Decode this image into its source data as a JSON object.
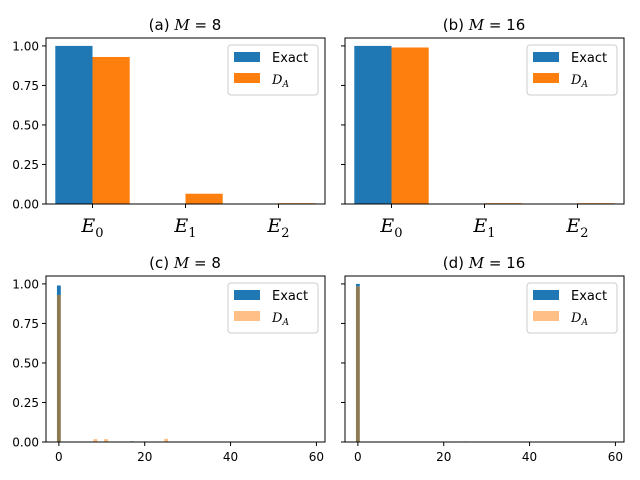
{
  "colors": {
    "exact": "#1f77b4",
    "da": "#ff7f0e",
    "da_light": "#ffbf86",
    "overlap": "#8c7a54"
  },
  "legend": {
    "exact": "Exact",
    "da_main": "D",
    "da_sub": "A"
  },
  "panels_top": [
    {
      "label_prefix": "(a) ",
      "var": "M",
      "eq": " = 8"
    },
    {
      "label_prefix": "(b) ",
      "var": "M",
      "eq": " = 16"
    }
  ],
  "panels_bottom": [
    {
      "label_prefix": "(c) ",
      "var": "M",
      "eq": " = 8"
    },
    {
      "label_prefix": "(d) ",
      "var": "M",
      "eq": " = 16"
    }
  ],
  "y_ticks": [
    "1.00",
    "0.75",
    "0.50",
    "0.25",
    "0.00"
  ],
  "x_ticks_bottom": [
    "0",
    "20",
    "40",
    "60"
  ],
  "x_tick_letter": "E",
  "x_tick_subs": [
    "0",
    "1",
    "2"
  ],
  "chart_data": [
    {
      "type": "bar",
      "title": "(a) M = 8",
      "categories": [
        "E0",
        "E1",
        "E2"
      ],
      "series": [
        {
          "name": "Exact",
          "values": [
            1.0,
            0.003,
            0.0
          ]
        },
        {
          "name": "D_A",
          "values": [
            0.93,
            0.065,
            0.005
          ]
        }
      ],
      "ylim": [
        0,
        1.05
      ],
      "legend": "top-right"
    },
    {
      "type": "bar",
      "title": "(b) M = 16",
      "categories": [
        "E0",
        "E1",
        "E2"
      ],
      "series": [
        {
          "name": "Exact",
          "values": [
            1.0,
            0.0,
            0.0
          ]
        },
        {
          "name": "D_A",
          "values": [
            0.99,
            0.005,
            0.005
          ]
        }
      ],
      "ylim": [
        0,
        1.05
      ],
      "legend": "top-right"
    },
    {
      "type": "bar",
      "title": "(c) M = 8",
      "x": [
        0,
        8.5,
        11,
        17,
        20,
        25,
        33
      ],
      "series": [
        {
          "name": "Exact",
          "values": [
            0.99,
            0.0,
            0.0,
            0.004,
            0.0,
            0.0,
            0.002
          ]
        },
        {
          "name": "D_A",
          "values": [
            0.93,
            0.018,
            0.018,
            0.0,
            0.004,
            0.02,
            0.0
          ]
        }
      ],
      "xlim": [
        -3,
        62
      ],
      "ylim": [
        0,
        1.05
      ],
      "legend": "top-right"
    },
    {
      "type": "bar",
      "title": "(d) M = 16",
      "x": [
        0,
        25,
        33
      ],
      "series": [
        {
          "name": "Exact",
          "values": [
            1.0,
            0.0,
            0.002
          ]
        },
        {
          "name": "D_A",
          "values": [
            0.985,
            0.004,
            0.0
          ]
        }
      ],
      "xlim": [
        -3,
        62
      ],
      "ylim": [
        0,
        1.05
      ],
      "legend": "top-right"
    }
  ]
}
